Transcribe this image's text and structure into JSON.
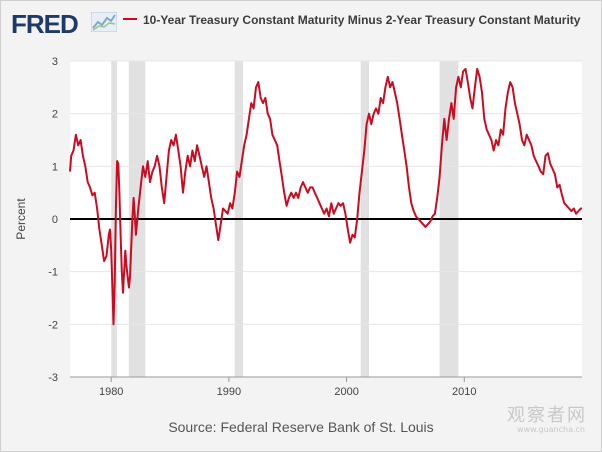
{
  "brand": {
    "logo_text": "FRED",
    "logo_mark_icon": "fred-sparkline-icon"
  },
  "chart_data": {
    "type": "line",
    "title": "",
    "ylabel": "Percent",
    "xlabel": "",
    "xlim": [
      1976.5,
      2020.0
    ],
    "ylim": [
      -3,
      3
    ],
    "y_ticks": [
      -3,
      -2,
      -1,
      0,
      1,
      2,
      3
    ],
    "x_ticks": [
      1980,
      1990,
      2000,
      2010
    ],
    "x_tick_labels": [
      "1980",
      "1990",
      "2000",
      "2010"
    ],
    "grid": "horizontal",
    "zero_line": true,
    "legend_position": "top",
    "series": [
      {
        "name": "10-Year Treasury Constant Maturity Minus 2-Year Treasury Constant Maturity",
        "color": "#cc0b20",
        "points": [
          [
            1976.5,
            0.9
          ],
          [
            1976.6,
            1.2
          ],
          [
            1976.8,
            1.3
          ],
          [
            1977.0,
            1.6
          ],
          [
            1977.2,
            1.4
          ],
          [
            1977.4,
            1.5
          ],
          [
            1977.6,
            1.2
          ],
          [
            1977.8,
            1.0
          ],
          [
            1978.0,
            0.7
          ],
          [
            1978.2,
            0.6
          ],
          [
            1978.4,
            0.45
          ],
          [
            1978.6,
            0.5
          ],
          [
            1978.8,
            0.2
          ],
          [
            1979.0,
            -0.2
          ],
          [
            1979.2,
            -0.5
          ],
          [
            1979.4,
            -0.8
          ],
          [
            1979.6,
            -0.7
          ],
          [
            1979.8,
            -0.3
          ],
          [
            1979.9,
            -0.2
          ],
          [
            1980.0,
            -0.6
          ],
          [
            1980.1,
            -1.3
          ],
          [
            1980.2,
            -2.0
          ],
          [
            1980.3,
            -1.2
          ],
          [
            1980.4,
            0.2
          ],
          [
            1980.5,
            1.1
          ],
          [
            1980.6,
            1.05
          ],
          [
            1980.7,
            0.5
          ],
          [
            1980.8,
            -0.3
          ],
          [
            1980.9,
            -1.0
          ],
          [
            1981.0,
            -1.4
          ],
          [
            1981.2,
            -0.6
          ],
          [
            1981.3,
            -0.9
          ],
          [
            1981.5,
            -1.3
          ],
          [
            1981.6,
            -1.1
          ],
          [
            1981.8,
            0.0
          ],
          [
            1981.9,
            0.4
          ],
          [
            1982.0,
            0.1
          ],
          [
            1982.1,
            -0.3
          ],
          [
            1982.3,
            0.2
          ],
          [
            1982.5,
            0.6
          ],
          [
            1982.7,
            1.0
          ],
          [
            1982.9,
            0.8
          ],
          [
            1983.1,
            1.1
          ],
          [
            1983.3,
            0.7
          ],
          [
            1983.5,
            0.9
          ],
          [
            1983.7,
            1.0
          ],
          [
            1983.9,
            1.2
          ],
          [
            1984.1,
            1.0
          ],
          [
            1984.3,
            0.6
          ],
          [
            1984.5,
            0.3
          ],
          [
            1984.7,
            0.8
          ],
          [
            1984.9,
            1.3
          ],
          [
            1985.1,
            1.5
          ],
          [
            1985.3,
            1.4
          ],
          [
            1985.5,
            1.6
          ],
          [
            1985.7,
            1.3
          ],
          [
            1985.9,
            1.0
          ],
          [
            1986.1,
            0.5
          ],
          [
            1986.3,
            0.9
          ],
          [
            1986.5,
            1.2
          ],
          [
            1986.7,
            1.0
          ],
          [
            1986.9,
            1.3
          ],
          [
            1987.1,
            1.1
          ],
          [
            1987.3,
            1.4
          ],
          [
            1987.5,
            1.2
          ],
          [
            1987.7,
            1.0
          ],
          [
            1987.9,
            0.8
          ],
          [
            1988.1,
            1.0
          ],
          [
            1988.3,
            0.7
          ],
          [
            1988.5,
            0.4
          ],
          [
            1988.7,
            0.2
          ],
          [
            1988.9,
            -0.1
          ],
          [
            1989.1,
            -0.4
          ],
          [
            1989.3,
            -0.1
          ],
          [
            1989.5,
            0.2
          ],
          [
            1989.7,
            0.15
          ],
          [
            1989.9,
            0.1
          ],
          [
            1990.1,
            0.3
          ],
          [
            1990.3,
            0.2
          ],
          [
            1990.5,
            0.5
          ],
          [
            1990.7,
            0.9
          ],
          [
            1990.9,
            0.8
          ],
          [
            1991.1,
            1.1
          ],
          [
            1991.3,
            1.4
          ],
          [
            1991.5,
            1.6
          ],
          [
            1991.7,
            1.9
          ],
          [
            1991.9,
            2.2
          ],
          [
            1992.1,
            2.1
          ],
          [
            1992.3,
            2.5
          ],
          [
            1992.5,
            2.6
          ],
          [
            1992.7,
            2.3
          ],
          [
            1992.9,
            2.2
          ],
          [
            1993.1,
            2.3
          ],
          [
            1993.3,
            2.0
          ],
          [
            1993.5,
            1.9
          ],
          [
            1993.7,
            1.6
          ],
          [
            1993.9,
            1.5
          ],
          [
            1994.1,
            1.4
          ],
          [
            1994.3,
            1.1
          ],
          [
            1994.5,
            0.8
          ],
          [
            1994.7,
            0.5
          ],
          [
            1994.9,
            0.25
          ],
          [
            1995.1,
            0.4
          ],
          [
            1995.3,
            0.5
          ],
          [
            1995.5,
            0.4
          ],
          [
            1995.7,
            0.5
          ],
          [
            1995.9,
            0.4
          ],
          [
            1996.1,
            0.6
          ],
          [
            1996.3,
            0.7
          ],
          [
            1996.5,
            0.6
          ],
          [
            1996.7,
            0.5
          ],
          [
            1996.9,
            0.6
          ],
          [
            1997.1,
            0.6
          ],
          [
            1997.3,
            0.5
          ],
          [
            1997.5,
            0.4
          ],
          [
            1997.7,
            0.3
          ],
          [
            1997.9,
            0.2
          ],
          [
            1998.1,
            0.1
          ],
          [
            1998.3,
            0.2
          ],
          [
            1998.5,
            0.05
          ],
          [
            1998.7,
            0.3
          ],
          [
            1998.9,
            0.1
          ],
          [
            1999.1,
            0.2
          ],
          [
            1999.3,
            0.3
          ],
          [
            1999.5,
            0.25
          ],
          [
            1999.7,
            0.3
          ],
          [
            1999.9,
            0.1
          ],
          [
            2000.1,
            -0.2
          ],
          [
            2000.3,
            -0.45
          ],
          [
            2000.5,
            -0.3
          ],
          [
            2000.7,
            -0.35
          ],
          [
            2000.9,
            0.0
          ],
          [
            2001.1,
            0.5
          ],
          [
            2001.3,
            0.9
          ],
          [
            2001.5,
            1.3
          ],
          [
            2001.7,
            1.8
          ],
          [
            2001.9,
            2.0
          ],
          [
            2002.1,
            1.8
          ],
          [
            2002.3,
            2.0
          ],
          [
            2002.5,
            2.1
          ],
          [
            2002.7,
            2.0
          ],
          [
            2002.9,
            2.3
          ],
          [
            2003.1,
            2.2
          ],
          [
            2003.3,
            2.5
          ],
          [
            2003.5,
            2.7
          ],
          [
            2003.7,
            2.5
          ],
          [
            2003.9,
            2.6
          ],
          [
            2004.1,
            2.4
          ],
          [
            2004.3,
            2.2
          ],
          [
            2004.5,
            1.9
          ],
          [
            2004.7,
            1.6
          ],
          [
            2004.9,
            1.3
          ],
          [
            2005.1,
            1.0
          ],
          [
            2005.3,
            0.6
          ],
          [
            2005.5,
            0.3
          ],
          [
            2005.7,
            0.15
          ],
          [
            2005.9,
            0.05
          ],
          [
            2006.1,
            0.0
          ],
          [
            2006.3,
            -0.05
          ],
          [
            2006.5,
            -0.1
          ],
          [
            2006.7,
            -0.15
          ],
          [
            2006.9,
            -0.1
          ],
          [
            2007.1,
            -0.05
          ],
          [
            2007.3,
            0.05
          ],
          [
            2007.5,
            0.1
          ],
          [
            2007.7,
            0.4
          ],
          [
            2007.9,
            0.8
          ],
          [
            2008.1,
            1.4
          ],
          [
            2008.3,
            1.9
          ],
          [
            2008.5,
            1.5
          ],
          [
            2008.7,
            1.9
          ],
          [
            2008.9,
            2.2
          ],
          [
            2009.1,
            1.9
          ],
          [
            2009.3,
            2.5
          ],
          [
            2009.5,
            2.7
          ],
          [
            2009.7,
            2.5
          ],
          [
            2009.9,
            2.8
          ],
          [
            2010.1,
            2.85
          ],
          [
            2010.3,
            2.6
          ],
          [
            2010.5,
            2.3
          ],
          [
            2010.7,
            2.1
          ],
          [
            2010.9,
            2.5
          ],
          [
            2011.1,
            2.85
          ],
          [
            2011.3,
            2.7
          ],
          [
            2011.5,
            2.4
          ],
          [
            2011.7,
            1.9
          ],
          [
            2011.9,
            1.7
          ],
          [
            2012.1,
            1.6
          ],
          [
            2012.3,
            1.5
          ],
          [
            2012.5,
            1.3
          ],
          [
            2012.7,
            1.5
          ],
          [
            2012.9,
            1.4
          ],
          [
            2013.1,
            1.7
          ],
          [
            2013.3,
            1.6
          ],
          [
            2013.5,
            2.1
          ],
          [
            2013.7,
            2.4
          ],
          [
            2013.9,
            2.6
          ],
          [
            2014.1,
            2.5
          ],
          [
            2014.3,
            2.2
          ],
          [
            2014.5,
            2.0
          ],
          [
            2014.7,
            1.8
          ],
          [
            2014.9,
            1.5
          ],
          [
            2015.1,
            1.4
          ],
          [
            2015.3,
            1.6
          ],
          [
            2015.5,
            1.5
          ],
          [
            2015.7,
            1.4
          ],
          [
            2015.9,
            1.2
          ],
          [
            2016.1,
            1.1
          ],
          [
            2016.3,
            1.0
          ],
          [
            2016.5,
            0.9
          ],
          [
            2016.7,
            0.85
          ],
          [
            2016.9,
            1.2
          ],
          [
            2017.1,
            1.25
          ],
          [
            2017.3,
            1.05
          ],
          [
            2017.5,
            0.95
          ],
          [
            2017.7,
            0.85
          ],
          [
            2017.9,
            0.6
          ],
          [
            2018.1,
            0.65
          ],
          [
            2018.3,
            0.45
          ],
          [
            2018.5,
            0.3
          ],
          [
            2018.7,
            0.25
          ],
          [
            2018.9,
            0.2
          ],
          [
            2019.1,
            0.15
          ],
          [
            2019.3,
            0.2
          ],
          [
            2019.5,
            0.1
          ],
          [
            2019.7,
            0.15
          ],
          [
            2019.9,
            0.2
          ],
          [
            2020.0,
            0.2
          ]
        ]
      }
    ],
    "recessions": [
      [
        1980.0,
        1980.5
      ],
      [
        1981.5,
        1982.9
      ],
      [
        1990.5,
        1991.2
      ],
      [
        2001.2,
        2001.9
      ],
      [
        2007.9,
        2009.5
      ]
    ]
  },
  "footer": {
    "source": "Source: Federal Reserve Bank of St. Louis"
  },
  "watermark": {
    "text": "观察者网",
    "url": "www.guancha.cn"
  }
}
